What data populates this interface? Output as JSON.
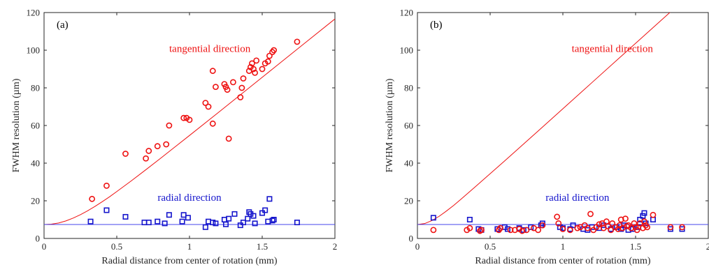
{
  "chart_data": [
    {
      "type": "scatter",
      "panel_label": "(a)",
      "xlabel": "Radial distance from center of rotation (mm)",
      "ylabel": "FWHM resolution (µm)",
      "xlim": [
        0,
        2
      ],
      "ylim": [
        0,
        120
      ],
      "xticks": [
        0,
        0.5,
        1,
        1.5,
        2
      ],
      "xtick_labels": [
        "0",
        "0.5",
        "1",
        "1.5",
        "2"
      ],
      "yticks": [
        0,
        20,
        40,
        60,
        80,
        100,
        120
      ],
      "ytick_labels": [
        "0",
        "20",
        "40",
        "60",
        "80",
        "100",
        "120"
      ],
      "grid": false,
      "annotations": [
        {
          "text": "tangential direction",
          "x": 1.14,
          "y": 99,
          "color": "#ee1111"
        },
        {
          "text": "radial direction",
          "x": 1.0,
          "y": 20,
          "color": "#1515cc"
        }
      ],
      "series": [
        {
          "marker": "circle",
          "color": "#ee1111",
          "points": [
            [
              0.33,
              21
            ],
            [
              0.43,
              28
            ],
            [
              0.56,
              45
            ],
            [
              0.7,
              42.5
            ],
            [
              0.72,
              46.5
            ],
            [
              0.78,
              49
            ],
            [
              0.84,
              50
            ],
            [
              0.86,
              60
            ],
            [
              0.96,
              64
            ],
            [
              0.98,
              64
            ],
            [
              1.0,
              63
            ],
            [
              1.11,
              72
            ],
            [
              1.13,
              70
            ],
            [
              1.16,
              61
            ],
            [
              1.16,
              89
            ],
            [
              1.18,
              80.5
            ],
            [
              1.24,
              82
            ],
            [
              1.25,
              80.5
            ],
            [
              1.26,
              79
            ],
            [
              1.27,
              53
            ],
            [
              1.3,
              83
            ],
            [
              1.35,
              75
            ],
            [
              1.36,
              80
            ],
            [
              1.37,
              85
            ],
            [
              1.41,
              89
            ],
            [
              1.42,
              91
            ],
            [
              1.43,
              93
            ],
            [
              1.44,
              90
            ],
            [
              1.45,
              88
            ],
            [
              1.46,
              94.5
            ],
            [
              1.5,
              90
            ],
            [
              1.52,
              93
            ],
            [
              1.54,
              94
            ],
            [
              1.55,
              97
            ],
            [
              1.57,
              99
            ],
            [
              1.58,
              100
            ],
            [
              1.74,
              104.5
            ]
          ]
        },
        {
          "marker": "square",
          "color": "#1515cc",
          "points": [
            [
              0.32,
              9
            ],
            [
              0.43,
              15
            ],
            [
              0.56,
              11.5
            ],
            [
              0.69,
              8.5
            ],
            [
              0.72,
              8.5
            ],
            [
              0.78,
              9
            ],
            [
              0.83,
              8
            ],
            [
              0.86,
              12.5
            ],
            [
              0.95,
              9
            ],
            [
              0.96,
              12.5
            ],
            [
              0.99,
              11
            ],
            [
              1.11,
              6
            ],
            [
              1.13,
              9
            ],
            [
              1.16,
              8.5
            ],
            [
              1.18,
              8
            ],
            [
              1.24,
              10
            ],
            [
              1.25,
              7.5
            ],
            [
              1.27,
              10.5
            ],
            [
              1.31,
              13
            ],
            [
              1.35,
              7
            ],
            [
              1.37,
              8.5
            ],
            [
              1.4,
              10.5
            ],
            [
              1.41,
              14
            ],
            [
              1.42,
              13
            ],
            [
              1.44,
              12
            ],
            [
              1.45,
              8
            ],
            [
              1.5,
              13.5
            ],
            [
              1.52,
              15
            ],
            [
              1.54,
              9
            ],
            [
              1.55,
              21
            ],
            [
              1.57,
              9.5
            ],
            [
              1.58,
              10
            ],
            [
              1.74,
              8.5
            ]
          ]
        }
      ],
      "fit_lines": [
        {
          "name": "tangential-fit",
          "color": "#ee1111",
          "points": [
            [
              0,
              7.4
            ],
            [
              0.05,
              7.6
            ],
            [
              0.1,
              8.2
            ],
            [
              0.15,
              9.3
            ],
            [
              0.2,
              10.8
            ],
            [
              0.25,
              12.6
            ],
            [
              0.3,
              14.7
            ],
            [
              0.35,
              17.0
            ],
            [
              0.4,
              19.5
            ],
            [
              0.45,
              22.1
            ],
            [
              0.5,
              24.9
            ],
            [
              0.6,
              30.6
            ],
            [
              0.7,
              36.5
            ],
            [
              0.8,
              42.5
            ],
            [
              0.9,
              48.6
            ],
            [
              1.0,
              54.7
            ],
            [
              1.2,
              67.0
            ],
            [
              1.4,
              79.4
            ],
            [
              1.6,
              91.8
            ],
            [
              1.8,
              104.2
            ],
            [
              2.0,
              116.6
            ]
          ]
        },
        {
          "name": "radial-fit",
          "color": "#4444ee",
          "points": [
            [
              0,
              7.4
            ],
            [
              2,
              7.4
            ]
          ]
        }
      ]
    },
    {
      "type": "scatter",
      "panel_label": "(b)",
      "xlabel": "Radial distance from center of rotation (mm)",
      "ylabel": "FWHM resolution (µm)",
      "xlim": [
        0,
        2
      ],
      "ylim": [
        0,
        120
      ],
      "xticks": [
        0,
        0.5,
        1,
        1.5,
        2
      ],
      "xtick_labels": [
        "0",
        "0.5",
        "1",
        "1.5",
        "2"
      ],
      "yticks": [
        0,
        20,
        40,
        60,
        80,
        100,
        120
      ],
      "ytick_labels": [
        "0",
        "20",
        "40",
        "60",
        "80",
        "100",
        "120"
      ],
      "grid": false,
      "annotations": [
        {
          "text": "tangential direction",
          "x": 1.34,
          "y": 99,
          "color": "#ee1111"
        },
        {
          "text": "radial direction",
          "x": 1.1,
          "y": 20,
          "color": "#1515cc"
        }
      ],
      "series": [
        {
          "marker": "square",
          "color": "#1515cc",
          "points": [
            [
              0.11,
              11
            ],
            [
              0.36,
              10
            ],
            [
              0.42,
              5
            ],
            [
              0.44,
              4.5
            ],
            [
              0.55,
              5
            ],
            [
              0.6,
              6
            ],
            [
              0.62,
              5
            ],
            [
              0.7,
              5.5
            ],
            [
              0.73,
              4.5
            ],
            [
              0.78,
              6
            ],
            [
              0.85,
              7
            ],
            [
              0.86,
              8
            ],
            [
              0.98,
              6
            ],
            [
              1.0,
              5.5
            ],
            [
              1.05,
              5
            ],
            [
              1.07,
              7
            ],
            [
              1.14,
              5
            ],
            [
              1.17,
              4.5
            ],
            [
              1.2,
              6
            ],
            [
              1.25,
              5.5
            ],
            [
              1.28,
              7
            ],
            [
              1.33,
              5
            ],
            [
              1.37,
              6
            ],
            [
              1.4,
              5
            ],
            [
              1.42,
              7
            ],
            [
              1.45,
              4.5
            ],
            [
              1.48,
              5
            ],
            [
              1.52,
              6
            ],
            [
              1.53,
              10
            ],
            [
              1.55,
              12
            ],
            [
              1.56,
              13.5
            ],
            [
              1.57,
              8
            ],
            [
              1.62,
              10
            ],
            [
              1.74,
              5
            ],
            [
              1.82,
              5
            ]
          ]
        },
        {
          "marker": "circle",
          "color": "#ee1111",
          "points": [
            [
              0.11,
              4.5
            ],
            [
              0.34,
              4.5
            ],
            [
              0.36,
              5.5
            ],
            [
              0.43,
              4
            ],
            [
              0.44,
              4.5
            ],
            [
              0.56,
              4.5
            ],
            [
              0.57,
              5.5
            ],
            [
              0.64,
              4.5
            ],
            [
              0.67,
              4.5
            ],
            [
              0.7,
              5
            ],
            [
              0.72,
              4
            ],
            [
              0.75,
              4.5
            ],
            [
              0.8,
              5.5
            ],
            [
              0.83,
              4.5
            ],
            [
              0.86,
              7
            ],
            [
              0.96,
              11.5
            ],
            [
              0.97,
              8
            ],
            [
              1.0,
              5
            ],
            [
              1.05,
              4.5
            ],
            [
              1.1,
              5.5
            ],
            [
              1.12,
              6
            ],
            [
              1.15,
              7
            ],
            [
              1.17,
              5.5
            ],
            [
              1.19,
              13
            ],
            [
              1.21,
              4.5
            ],
            [
              1.23,
              6
            ],
            [
              1.25,
              7.5
            ],
            [
              1.27,
              8
            ],
            [
              1.28,
              5.5
            ],
            [
              1.3,
              9
            ],
            [
              1.31,
              6.5
            ],
            [
              1.33,
              4.5
            ],
            [
              1.34,
              8
            ],
            [
              1.36,
              6
            ],
            [
              1.38,
              5
            ],
            [
              1.39,
              7
            ],
            [
              1.4,
              10
            ],
            [
              1.41,
              5.5
            ],
            [
              1.43,
              10.5
            ],
            [
              1.44,
              6.5
            ],
            [
              1.45,
              7
            ],
            [
              1.47,
              5.5
            ],
            [
              1.49,
              8
            ],
            [
              1.5,
              6
            ],
            [
              1.51,
              4.5
            ],
            [
              1.53,
              8
            ],
            [
              1.55,
              5.5
            ],
            [
              1.56,
              9
            ],
            [
              1.57,
              7
            ],
            [
              1.58,
              6
            ],
            [
              1.62,
              12.5
            ],
            [
              1.74,
              6
            ],
            [
              1.82,
              6
            ]
          ]
        }
      ],
      "fit_lines": [
        {
          "name": "tangential-fit",
          "color": "#ee1111",
          "points": [
            [
              0,
              7.4
            ],
            [
              0.05,
              7.9
            ],
            [
              0.1,
              9.5
            ],
            [
              0.15,
              11.8
            ],
            [
              0.2,
              14.6
            ],
            [
              0.25,
              17.6
            ],
            [
              0.3,
              20.9
            ],
            [
              0.4,
              27.6
            ],
            [
              0.5,
              34.4
            ],
            [
              0.6,
              41.2
            ],
            [
              0.7,
              48.1
            ],
            [
              0.8,
              55.0
            ],
            [
              1.0,
              68.9
            ],
            [
              1.2,
              82.8
            ],
            [
              1.4,
              96.7
            ],
            [
              1.6,
              110.6
            ],
            [
              1.8,
              124.5
            ],
            [
              2.0,
              138.4
            ]
          ]
        },
        {
          "name": "radial-fit",
          "color": "#4444ee",
          "points": [
            [
              0,
              7.4
            ],
            [
              2,
              7.4
            ]
          ]
        }
      ]
    }
  ]
}
